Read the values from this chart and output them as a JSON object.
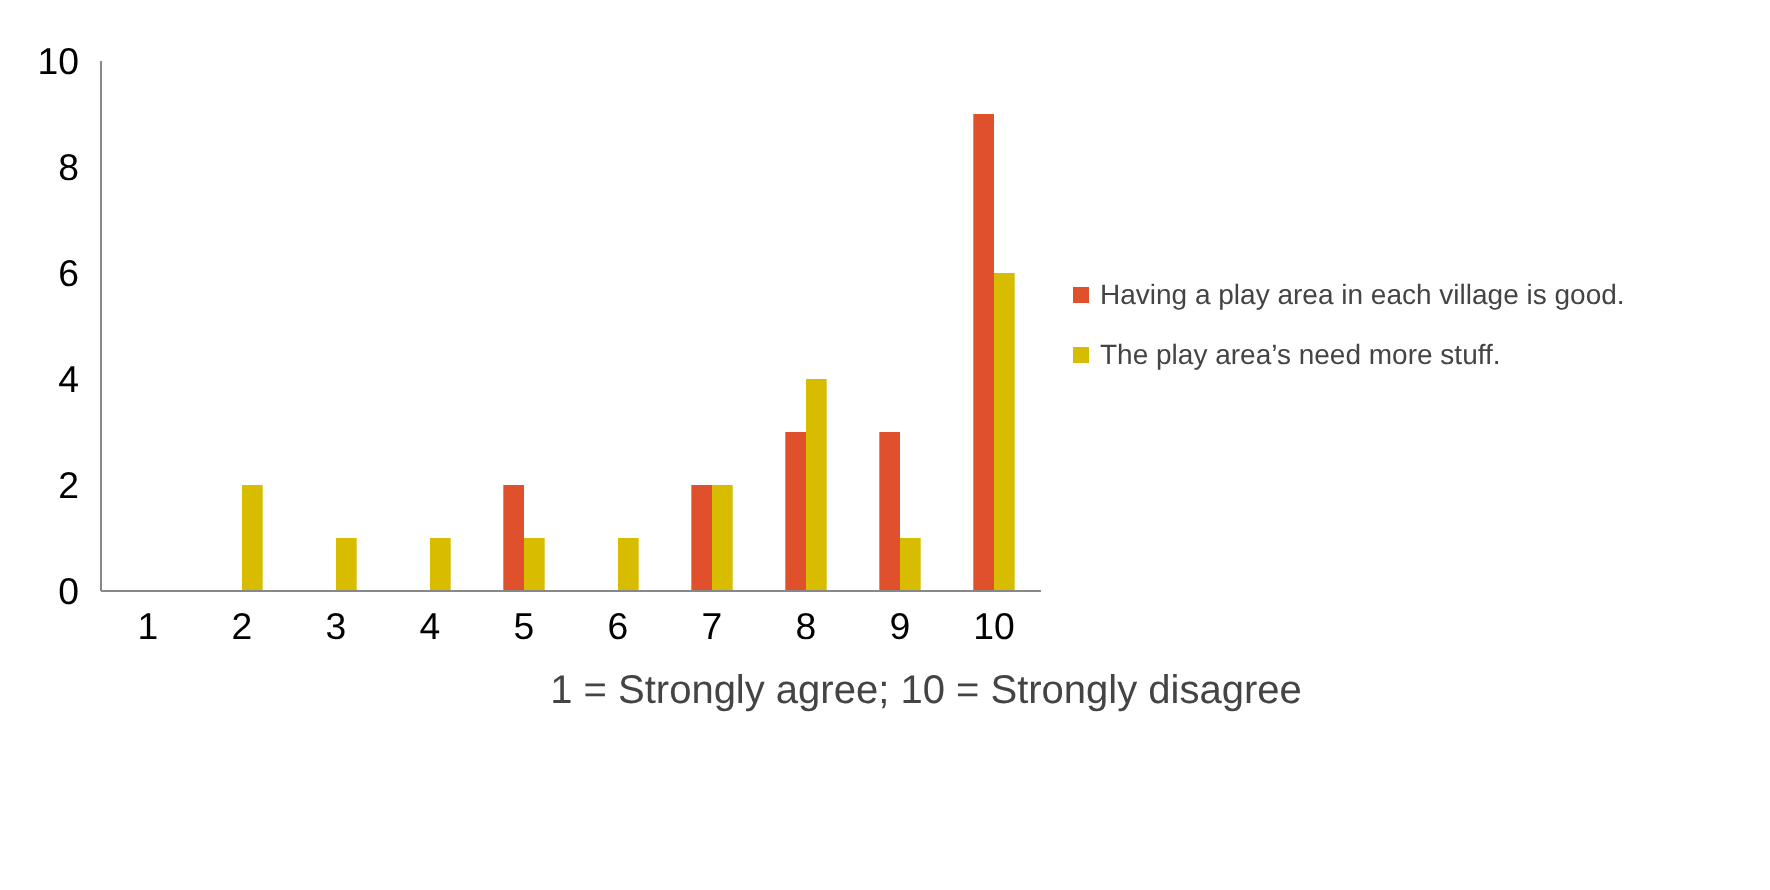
{
  "chart_data": {
    "type": "bar",
    "categories": [
      "1",
      "2",
      "3",
      "4",
      "5",
      "6",
      "7",
      "8",
      "9",
      "10"
    ],
    "xlabel": "1 = Strongly agree; 10 = Strongly disagree",
    "series": [
      {
        "name": "Having a play area in each village is good.",
        "color": "#e0502c",
        "values": [
          0,
          0,
          0,
          0,
          2,
          0,
          2,
          3,
          3,
          9
        ]
      },
      {
        "name": "The play area’s need more stuff.",
        "color": "#d8bc00",
        "values": [
          0,
          2,
          1,
          1,
          1,
          1,
          2,
          4,
          1,
          6
        ]
      }
    ],
    "ylim": [
      0,
      10
    ],
    "yticks": [
      0,
      2,
      4,
      6,
      8,
      10
    ],
    "grid": false,
    "legend": "right"
  }
}
